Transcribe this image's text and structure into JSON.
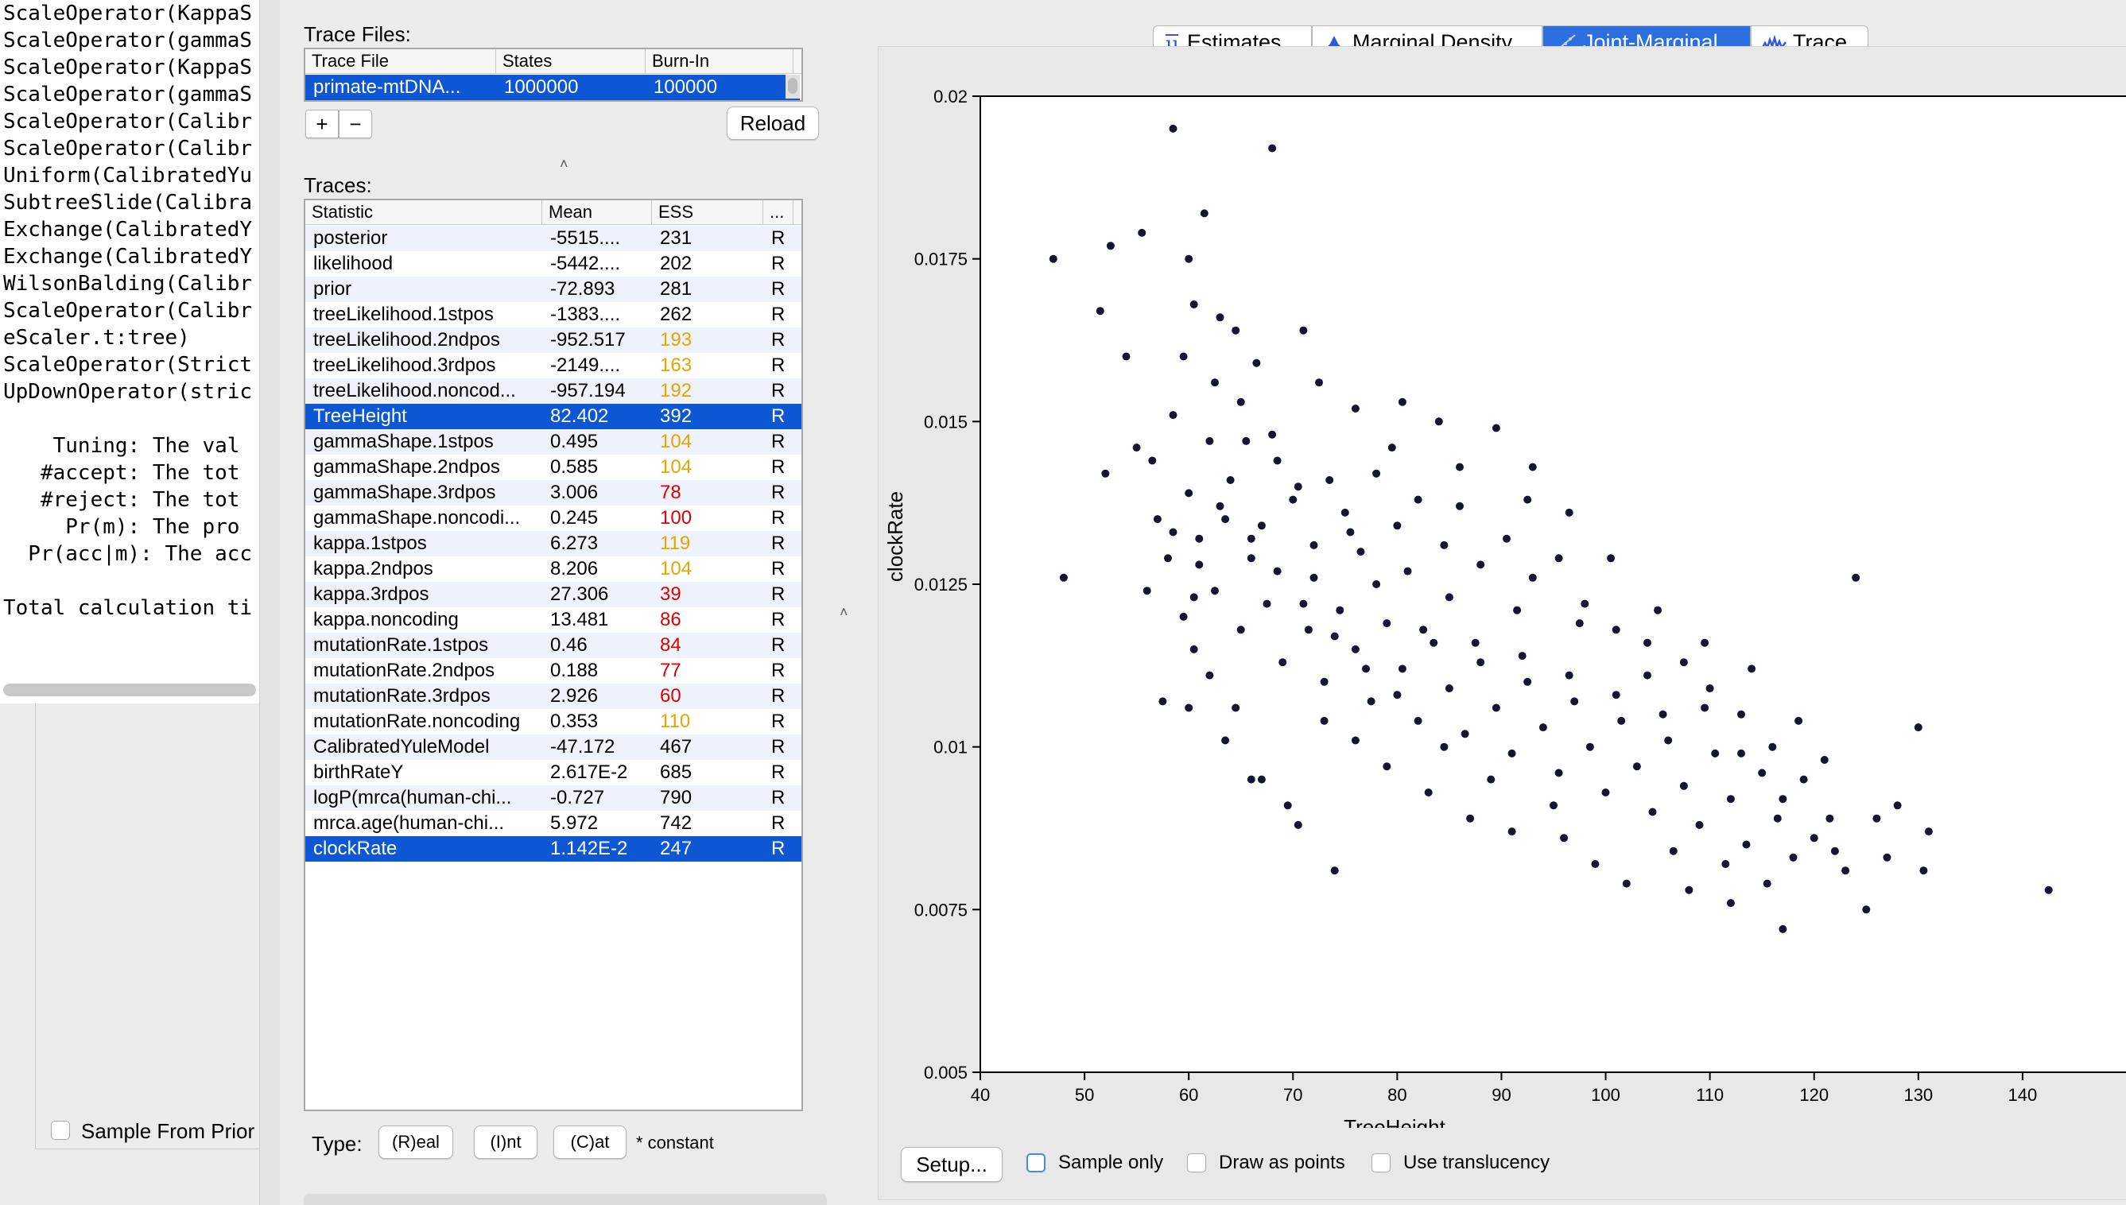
{
  "console": {
    "lines": [
      "ScaleOperator(KappaS",
      "ScaleOperator(gammaS",
      "ScaleOperator(KappaS",
      "ScaleOperator(gammaS",
      "ScaleOperator(Calibr",
      "ScaleOperator(Calibr",
      "Uniform(CalibratedYu",
      "SubtreeSlide(Calibra",
      "Exchange(CalibratedY",
      "Exchange(CalibratedY",
      "WilsonBalding(Calibr",
      "ScaleOperator(Calibr",
      "eScaler.t:tree)",
      "ScaleOperator(Strict",
      "UpDownOperator(stric",
      "",
      "    Tuning: The val",
      "   #accept: The tot",
      "   #reject: The tot",
      "     Pr(m): The pro",
      "  Pr(acc|m): The acc",
      "",
      "Total calculation ti"
    ]
  },
  "beauti": {
    "sample_from_prior_label": "Sample From Prior"
  },
  "trace_files": {
    "title": "Trace Files:",
    "columns": [
      "Trace File",
      "States",
      "Burn-In"
    ],
    "rows": [
      [
        "primate-mtDNA...",
        "1000000",
        "100000"
      ]
    ],
    "add_label": "+",
    "remove_label": "−",
    "reload_label": "Reload"
  },
  "traces": {
    "title": "Traces:",
    "columns": [
      "Statistic",
      "Mean",
      "ESS",
      "..."
    ],
    "rows": [
      {
        "stat": "posterior",
        "mean": "-5515....",
        "ess": "231",
        "type": "R",
        "ess_color": "#000000",
        "selected": false
      },
      {
        "stat": "likelihood",
        "mean": "-5442....",
        "ess": "202",
        "type": "R",
        "ess_color": "#000000",
        "selected": false
      },
      {
        "stat": "prior",
        "mean": "-72.893",
        "ess": "281",
        "type": "R",
        "ess_color": "#000000",
        "selected": false
      },
      {
        "stat": "treeLikelihood.1stpos",
        "mean": "-1383....",
        "ess": "262",
        "type": "R",
        "ess_color": "#000000",
        "selected": false
      },
      {
        "stat": "treeLikelihood.2ndpos",
        "mean": "-952.517",
        "ess": "193",
        "type": "R",
        "ess_color": "#e6a400",
        "selected": false
      },
      {
        "stat": "treeLikelihood.3rdpos",
        "mean": "-2149....",
        "ess": "163",
        "type": "R",
        "ess_color": "#e6a400",
        "selected": false
      },
      {
        "stat": "treeLikelihood.noncod...",
        "mean": "-957.194",
        "ess": "192",
        "type": "R",
        "ess_color": "#e6a400",
        "selected": false
      },
      {
        "stat": "TreeHeight",
        "mean": "82.402",
        "ess": "392",
        "type": "R",
        "ess_color": "#ffffff",
        "selected": true
      },
      {
        "stat": "gammaShape.1stpos",
        "mean": "0.495",
        "ess": "104",
        "type": "R",
        "ess_color": "#e6a400",
        "selected": false
      },
      {
        "stat": "gammaShape.2ndpos",
        "mean": "0.585",
        "ess": "104",
        "type": "R",
        "ess_color": "#e6a400",
        "selected": false
      },
      {
        "stat": "gammaShape.3rdpos",
        "mean": "3.006",
        "ess": "78",
        "type": "R",
        "ess_color": "#e00000",
        "selected": false
      },
      {
        "stat": "gammaShape.noncodi...",
        "mean": "0.245",
        "ess": "100",
        "type": "R",
        "ess_color": "#e00000",
        "selected": false
      },
      {
        "stat": "kappa.1stpos",
        "mean": "6.273",
        "ess": "119",
        "type": "R",
        "ess_color": "#e6a400",
        "selected": false
      },
      {
        "stat": "kappa.2ndpos",
        "mean": "8.206",
        "ess": "104",
        "type": "R",
        "ess_color": "#e6a400",
        "selected": false
      },
      {
        "stat": "kappa.3rdpos",
        "mean": "27.306",
        "ess": "39",
        "type": "R",
        "ess_color": "#e00000",
        "selected": false
      },
      {
        "stat": "kappa.noncoding",
        "mean": "13.481",
        "ess": "86",
        "type": "R",
        "ess_color": "#e00000",
        "selected": false
      },
      {
        "stat": "mutationRate.1stpos",
        "mean": "0.46",
        "ess": "84",
        "type": "R",
        "ess_color": "#e00000",
        "selected": false
      },
      {
        "stat": "mutationRate.2ndpos",
        "mean": "0.188",
        "ess": "77",
        "type": "R",
        "ess_color": "#e00000",
        "selected": false
      },
      {
        "stat": "mutationRate.3rdpos",
        "mean": "2.926",
        "ess": "60",
        "type": "R",
        "ess_color": "#e00000",
        "selected": false
      },
      {
        "stat": "mutationRate.noncoding",
        "mean": "0.353",
        "ess": "110",
        "type": "R",
        "ess_color": "#e6a400",
        "selected": false
      },
      {
        "stat": "CalibratedYuleModel",
        "mean": "-47.172",
        "ess": "467",
        "type": "R",
        "ess_color": "#000000",
        "selected": false
      },
      {
        "stat": "birthRateY",
        "mean": "2.617E-2",
        "ess": "685",
        "type": "R",
        "ess_color": "#000000",
        "selected": false
      },
      {
        "stat": "logP(mrca(human-chi...",
        "mean": "-0.727",
        "ess": "790",
        "type": "R",
        "ess_color": "#000000",
        "selected": false
      },
      {
        "stat": "mrca.age(human-chi...",
        "mean": "5.972",
        "ess": "742",
        "type": "R",
        "ess_color": "#000000",
        "selected": false
      },
      {
        "stat": "clockRate",
        "mean": "1.142E-2",
        "ess": "247",
        "type": "R",
        "ess_color": "#ffffff",
        "selected": true
      }
    ]
  },
  "type_bar": {
    "label": "Type:",
    "real": "(R)eal",
    "int": "(I)nt",
    "cat": "(C)at",
    "constant": "* constant"
  },
  "tabs": {
    "estimates": "Estimates",
    "marginal": "Marginal Density",
    "joint": "Joint-Marginal",
    "trace": "Trace",
    "active": "joint"
  },
  "bottom_bar": {
    "setup": "Setup...",
    "sample_only": "Sample only",
    "draw_points": "Draw as points",
    "translucency": "Use translucency"
  },
  "colors": {
    "selection": "#0d57d4",
    "point": "#141433",
    "ess_warn": "#e6a400",
    "ess_bad": "#e00000"
  },
  "chart_data": {
    "type": "scatter",
    "xlabel": "TreeHeight",
    "ylabel": "clockRate",
    "xlim": [
      40,
      150
    ],
    "ylim": [
      0.005,
      0.02
    ],
    "x_ticks": [
      "40",
      "50",
      "60",
      "70",
      "80",
      "90",
      "100",
      "110",
      "120",
      "130",
      "140"
    ],
    "y_ticks": [
      "0.005",
      "0.0075",
      "0.01",
      "0.0125",
      "0.015",
      "0.0175",
      "0.02"
    ],
    "x_tick_values": [
      40,
      50,
      60,
      70,
      80,
      90,
      100,
      110,
      120,
      130,
      140
    ],
    "y_tick_values": [
      0.005,
      0.0075,
      0.01,
      0.0125,
      0.015,
      0.0175,
      0.02
    ],
    "summary": {
      "x_mean": 82.402,
      "y_mean": 0.01142,
      "n_points_approx": 900
    },
    "points": [
      [
        47.0,
        0.0175
      ],
      [
        48.0,
        0.0126
      ],
      [
        51.5,
        0.0167
      ],
      [
        52.5,
        0.0177
      ],
      [
        54.0,
        0.016
      ],
      [
        55.5,
        0.0179
      ],
      [
        58.5,
        0.0195
      ],
      [
        60.0,
        0.0175
      ],
      [
        61.5,
        0.0182
      ],
      [
        68.0,
        0.0192
      ],
      [
        60.5,
        0.0168
      ],
      [
        63.0,
        0.0166
      ],
      [
        64.5,
        0.0164
      ],
      [
        71.0,
        0.0164
      ],
      [
        59.5,
        0.016
      ],
      [
        62.5,
        0.0156
      ],
      [
        65.0,
        0.0153
      ],
      [
        66.5,
        0.0159
      ],
      [
        72.5,
        0.0156
      ],
      [
        76.0,
        0.0152
      ],
      [
        80.5,
        0.0153
      ],
      [
        84.0,
        0.015
      ],
      [
        89.5,
        0.0149
      ],
      [
        93.0,
        0.0143
      ],
      [
        56.5,
        0.0144
      ],
      [
        55.0,
        0.0146
      ],
      [
        52.0,
        0.0142
      ],
      [
        57.0,
        0.0135
      ],
      [
        56.0,
        0.0124
      ],
      [
        58.0,
        0.0129
      ],
      [
        60.0,
        0.0139
      ],
      [
        61.0,
        0.0132
      ],
      [
        63.0,
        0.0137
      ],
      [
        64.0,
        0.0141
      ],
      [
        66.0,
        0.0129
      ],
      [
        67.0,
        0.0134
      ],
      [
        68.5,
        0.0144
      ],
      [
        70.0,
        0.0138
      ],
      [
        72.0,
        0.0131
      ],
      [
        73.5,
        0.0141
      ],
      [
        75.0,
        0.0136
      ],
      [
        76.5,
        0.013
      ],
      [
        78.0,
        0.0142
      ],
      [
        80.0,
        0.0134
      ],
      [
        82.0,
        0.0138
      ],
      [
        84.5,
        0.0131
      ],
      [
        86.0,
        0.0137
      ],
      [
        88.0,
        0.0128
      ],
      [
        90.5,
        0.0132
      ],
      [
        93.0,
        0.0126
      ],
      [
        95.5,
        0.0129
      ],
      [
        98.0,
        0.0122
      ],
      [
        101.0,
        0.0118
      ],
      [
        104.0,
        0.0116
      ],
      [
        107.5,
        0.0113
      ],
      [
        110.0,
        0.0109
      ],
      [
        113.0,
        0.0105
      ],
      [
        116.0,
        0.01
      ],
      [
        119.0,
        0.0095
      ],
      [
        124.0,
        0.0126
      ],
      [
        121.0,
        0.0098
      ],
      [
        130.0,
        0.0103
      ],
      [
        128.0,
        0.0091
      ],
      [
        130.5,
        0.0081
      ],
      [
        131.0,
        0.0087
      ],
      [
        142.5,
        0.0078
      ],
      [
        117.0,
        0.0072
      ],
      [
        112.0,
        0.0076
      ],
      [
        108.0,
        0.0078
      ],
      [
        102.0,
        0.0079
      ],
      [
        74.0,
        0.0081
      ],
      [
        60.0,
        0.0106
      ],
      [
        57.5,
        0.0107
      ],
      [
        62.0,
        0.0111
      ],
      [
        63.5,
        0.0101
      ],
      [
        66.0,
        0.0095
      ],
      [
        67.0,
        0.0095
      ],
      [
        70.5,
        0.0088
      ],
      [
        69.5,
        0.0091
      ],
      [
        64.5,
        0.0106
      ],
      [
        60.5,
        0.0115
      ],
      [
        59.5,
        0.012
      ],
      [
        62.5,
        0.0124
      ],
      [
        65.0,
        0.0118
      ],
      [
        67.5,
        0.0122
      ],
      [
        69.0,
        0.0113
      ],
      [
        71.5,
        0.0118
      ],
      [
        73.0,
        0.011
      ],
      [
        74.5,
        0.0121
      ],
      [
        76.0,
        0.0115
      ],
      [
        77.5,
        0.0107
      ],
      [
        79.0,
        0.0119
      ],
      [
        80.5,
        0.0112
      ],
      [
        82.0,
        0.0104
      ],
      [
        83.5,
        0.0116
      ],
      [
        85.0,
        0.0109
      ],
      [
        86.5,
        0.0102
      ],
      [
        88.0,
        0.0113
      ],
      [
        89.5,
        0.0106
      ],
      [
        91.0,
        0.0099
      ],
      [
        92.5,
        0.011
      ],
      [
        94.0,
        0.0103
      ],
      [
        95.5,
        0.0096
      ],
      [
        97.0,
        0.0107
      ],
      [
        98.5,
        0.01
      ],
      [
        100.0,
        0.0093
      ],
      [
        101.5,
        0.0104
      ],
      [
        103.0,
        0.0097
      ],
      [
        104.5,
        0.009
      ],
      [
        106.0,
        0.0101
      ],
      [
        107.5,
        0.0094
      ],
      [
        109.0,
        0.0088
      ],
      [
        110.5,
        0.0099
      ],
      [
        112.0,
        0.0092
      ],
      [
        113.5,
        0.0085
      ],
      [
        115.0,
        0.0096
      ],
      [
        116.5,
        0.0089
      ],
      [
        118.0,
        0.0083
      ],
      [
        120.0,
        0.0086
      ],
      [
        122.0,
        0.0084
      ],
      [
        123.0,
        0.0081
      ],
      [
        125.0,
        0.0075
      ],
      [
        72.0,
        0.0126
      ],
      [
        78.0,
        0.0125
      ],
      [
        85.0,
        0.0123
      ],
      [
        91.5,
        0.0121
      ],
      [
        97.5,
        0.0119
      ],
      [
        104.0,
        0.0111
      ],
      [
        87.0,
        0.0089
      ],
      [
        91.0,
        0.0087
      ],
      [
        96.0,
        0.0086
      ],
      [
        99.0,
        0.0082
      ],
      [
        83.0,
        0.0093
      ],
      [
        79.0,
        0.0097
      ],
      [
        76.0,
        0.0101
      ],
      [
        73.0,
        0.0104
      ],
      [
        81.0,
        0.0127
      ],
      [
        75.5,
        0.0133
      ],
      [
        70.5,
        0.014
      ],
      [
        68.0,
        0.0148
      ],
      [
        65.5,
        0.0147
      ],
      [
        62.0,
        0.0147
      ],
      [
        58.5,
        0.0151
      ],
      [
        79.5,
        0.0146
      ],
      [
        86.0,
        0.0143
      ],
      [
        92.5,
        0.0138
      ],
      [
        96.5,
        0.0136
      ],
      [
        100.5,
        0.0129
      ],
      [
        105.0,
        0.0121
      ],
      [
        109.5,
        0.0116
      ],
      [
        114.0,
        0.0112
      ],
      [
        118.5,
        0.0104
      ],
      [
        126.0,
        0.0089
      ],
      [
        127.0,
        0.0083
      ],
      [
        106.5,
        0.0084
      ],
      [
        111.5,
        0.0082
      ],
      [
        115.5,
        0.0079
      ],
      [
        95.0,
        0.0091
      ],
      [
        89.0,
        0.0095
      ],
      [
        84.5,
        0.01
      ],
      [
        80.0,
        0.0108
      ],
      [
        77.0,
        0.0112
      ],
      [
        74.0,
        0.0117
      ],
      [
        71.0,
        0.0122
      ],
      [
        68.5,
        0.0127
      ],
      [
        66.0,
        0.0132
      ],
      [
        63.5,
        0.0135
      ],
      [
        61.0,
        0.0128
      ],
      [
        58.5,
        0.0133
      ],
      [
        60.5,
        0.0123
      ],
      [
        82.5,
        0.0118
      ],
      [
        87.5,
        0.0116
      ],
      [
        92.0,
        0.0114
      ],
      [
        96.5,
        0.0111
      ],
      [
        101.0,
        0.0108
      ],
      [
        105.5,
        0.0105
      ],
      [
        109.5,
        0.0106
      ],
      [
        113.0,
        0.0099
      ],
      [
        117.0,
        0.0092
      ],
      [
        121.5,
        0.0089
      ]
    ]
  }
}
